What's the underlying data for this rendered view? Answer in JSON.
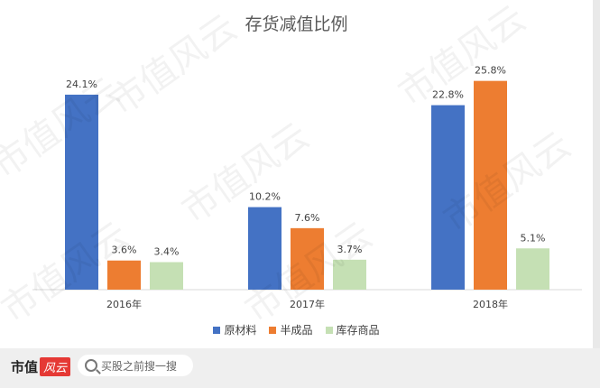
{
  "chart_data": {
    "type": "bar",
    "title": "存货减值比例",
    "categories": [
      "2016年",
      "2017年",
      "2018年"
    ],
    "series": [
      {
        "name": "原材料",
        "values": [
          24.1,
          10.2,
          22.8
        ],
        "labels": [
          "24.1%",
          "10.2%",
          "22.8%"
        ],
        "color": "#4472c4"
      },
      {
        "name": "半成品",
        "values": [
          3.6,
          7.6,
          25.8
        ],
        "labels": [
          "3.6%",
          "7.6%",
          "25.8%"
        ],
        "color": "#ed7d31"
      },
      {
        "name": "库存商品",
        "values": [
          3.4,
          3.7,
          5.1
        ],
        "labels": [
          "3.4%",
          "3.7%",
          "5.1%"
        ],
        "color": "#c5e0b4"
      }
    ],
    "ylim": [
      0,
      30
    ],
    "grid": false,
    "legend_position": "bottom"
  },
  "watermark": "市值风云",
  "footer": {
    "brand_text": "市值",
    "brand_badge": "风云",
    "search_placeholder": "买股之前搜一搜"
  }
}
